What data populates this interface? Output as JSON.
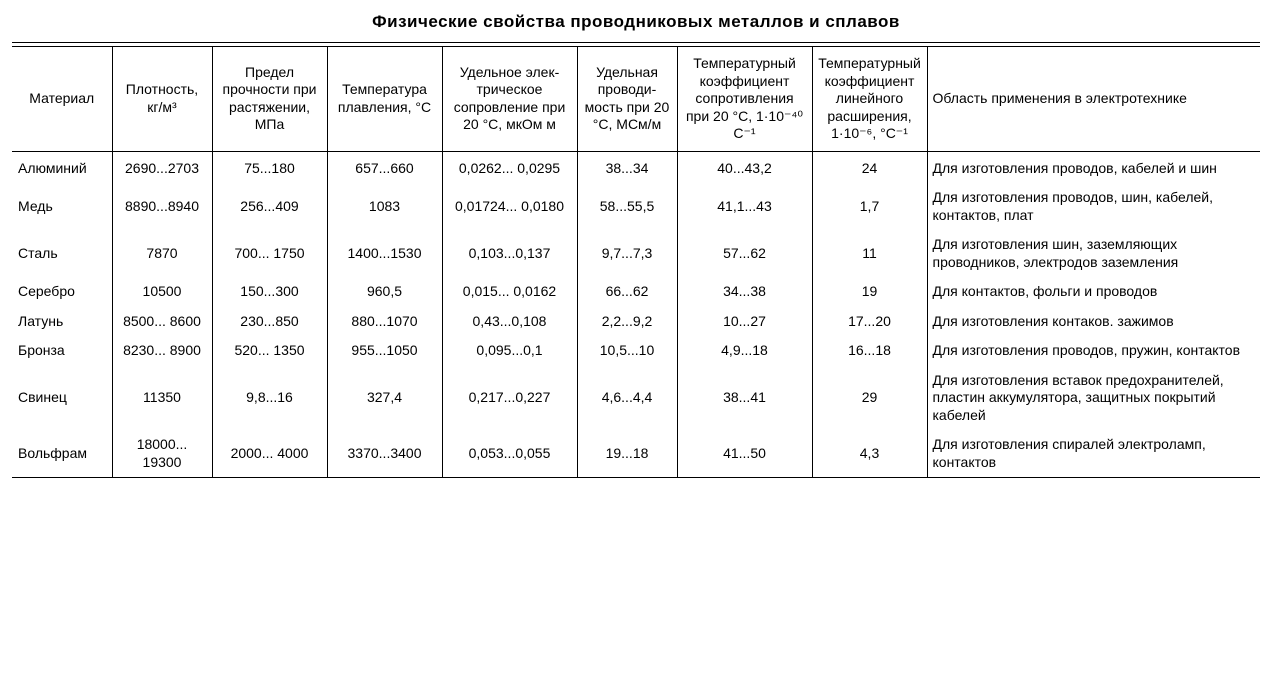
{
  "title": "Физические свойства проводниковых металлов и сплавов",
  "columns": [
    "Материал",
    "Плотность, кг/м³",
    "Предел прочности при растяже­нии, МПа",
    "Температура плавления, °C",
    "Удельное элек­трическое сопровление при 20 °C, мкОм м",
    "Удельная проводи­мость при 20 °C, МСм/м",
    "Температурный коэффициент сопротивления при 20 °C, 1·10⁻⁴⁰ C⁻¹",
    "Темпера­турный коэф­фициент линейного расширения, 1·10⁻⁶, °C⁻¹",
    "Область применения в электротехнике"
  ],
  "col_widths": [
    "col-0",
    "col-1",
    "col-2",
    "col-3",
    "col-4",
    "col-5",
    "col-6",
    "col-7",
    "col-8"
  ],
  "rows": [
    {
      "c0": "Алюминий",
      "c1": "2690...2703",
      "c2": "75...180",
      "c3": "657...660",
      "c4": "0,0262... 0,0295",
      "c5": "38...34",
      "c6": "40...43,2",
      "c7": "24",
      "c8": "Для изготовления проводов, кабелей и шин"
    },
    {
      "c0": "Медь",
      "c1": "8890...8940",
      "c2": "256...409",
      "c3": "1083",
      "c4": "0,01724... 0,0180",
      "c5": "58...55,5",
      "c6": "41,1...43",
      "c7": "1,7",
      "c8": "Для изготовления проводов, шин, кабелей, контактов, плат"
    },
    {
      "c0": "Сталь",
      "c1": "7870",
      "c2": "700... 1750",
      "c3": "1400...1530",
      "c4": "0,103...0,137",
      "c5": "9,7...7,3",
      "c6": "57...62",
      "c7": "11",
      "c8": "Для изготовления шин, заземляющих проводников, электродов заземления"
    },
    {
      "c0": "Серебро",
      "c1": "10500",
      "c2": "150...300",
      "c3": "960,5",
      "c4": "0,015... 0,0162",
      "c5": "66...62",
      "c6": "34...38",
      "c7": "19",
      "c8": "Для контактов, фольги и проводов"
    },
    {
      "c0": "Латунь",
      "c1": "8500... 8600",
      "c2": "230...850",
      "c3": "880...1070",
      "c4": "0,43...0,108",
      "c5": "2,2...9,2",
      "c6": "10...27",
      "c7": "17...20",
      "c8": "Для изготовления контаков. зажимов"
    },
    {
      "c0": "Бронза",
      "c1": "8230... 8900",
      "c2": "520... 1350",
      "c3": "955...1050",
      "c4": "0,095...0,1",
      "c5": "10,5...10",
      "c6": "4,9...18",
      "c7": "16...18",
      "c8": "Для изготовления проводов, пружин, контактов"
    },
    {
      "c0": "Свинец",
      "c1": "11350",
      "c2": "9,8...16",
      "c3": "327,4",
      "c4": "0,217...0,227",
      "c5": "4,6...4,4",
      "c6": "38...41",
      "c7": "29",
      "c8": "Для изготовления вставок предохранителей, пластин аккумулятора, защитных покрытий кабелей"
    },
    {
      "c0": "Вольфрам",
      "c1": "18000... 19300",
      "c2": "2000... 4000",
      "c3": "3370...3400",
      "c4": "0,053...0,055",
      "c5": "19...18",
      "c6": "41...50",
      "c7": "4,3",
      "c8": "Для изготовления спиралей электроламп, контактов"
    }
  ],
  "styling": {
    "background_color": "#ffffff",
    "text_color": "#000000",
    "border_color": "#000000",
    "title_fontsize": 17,
    "cell_fontsize": 14,
    "font_family": "Arial"
  }
}
